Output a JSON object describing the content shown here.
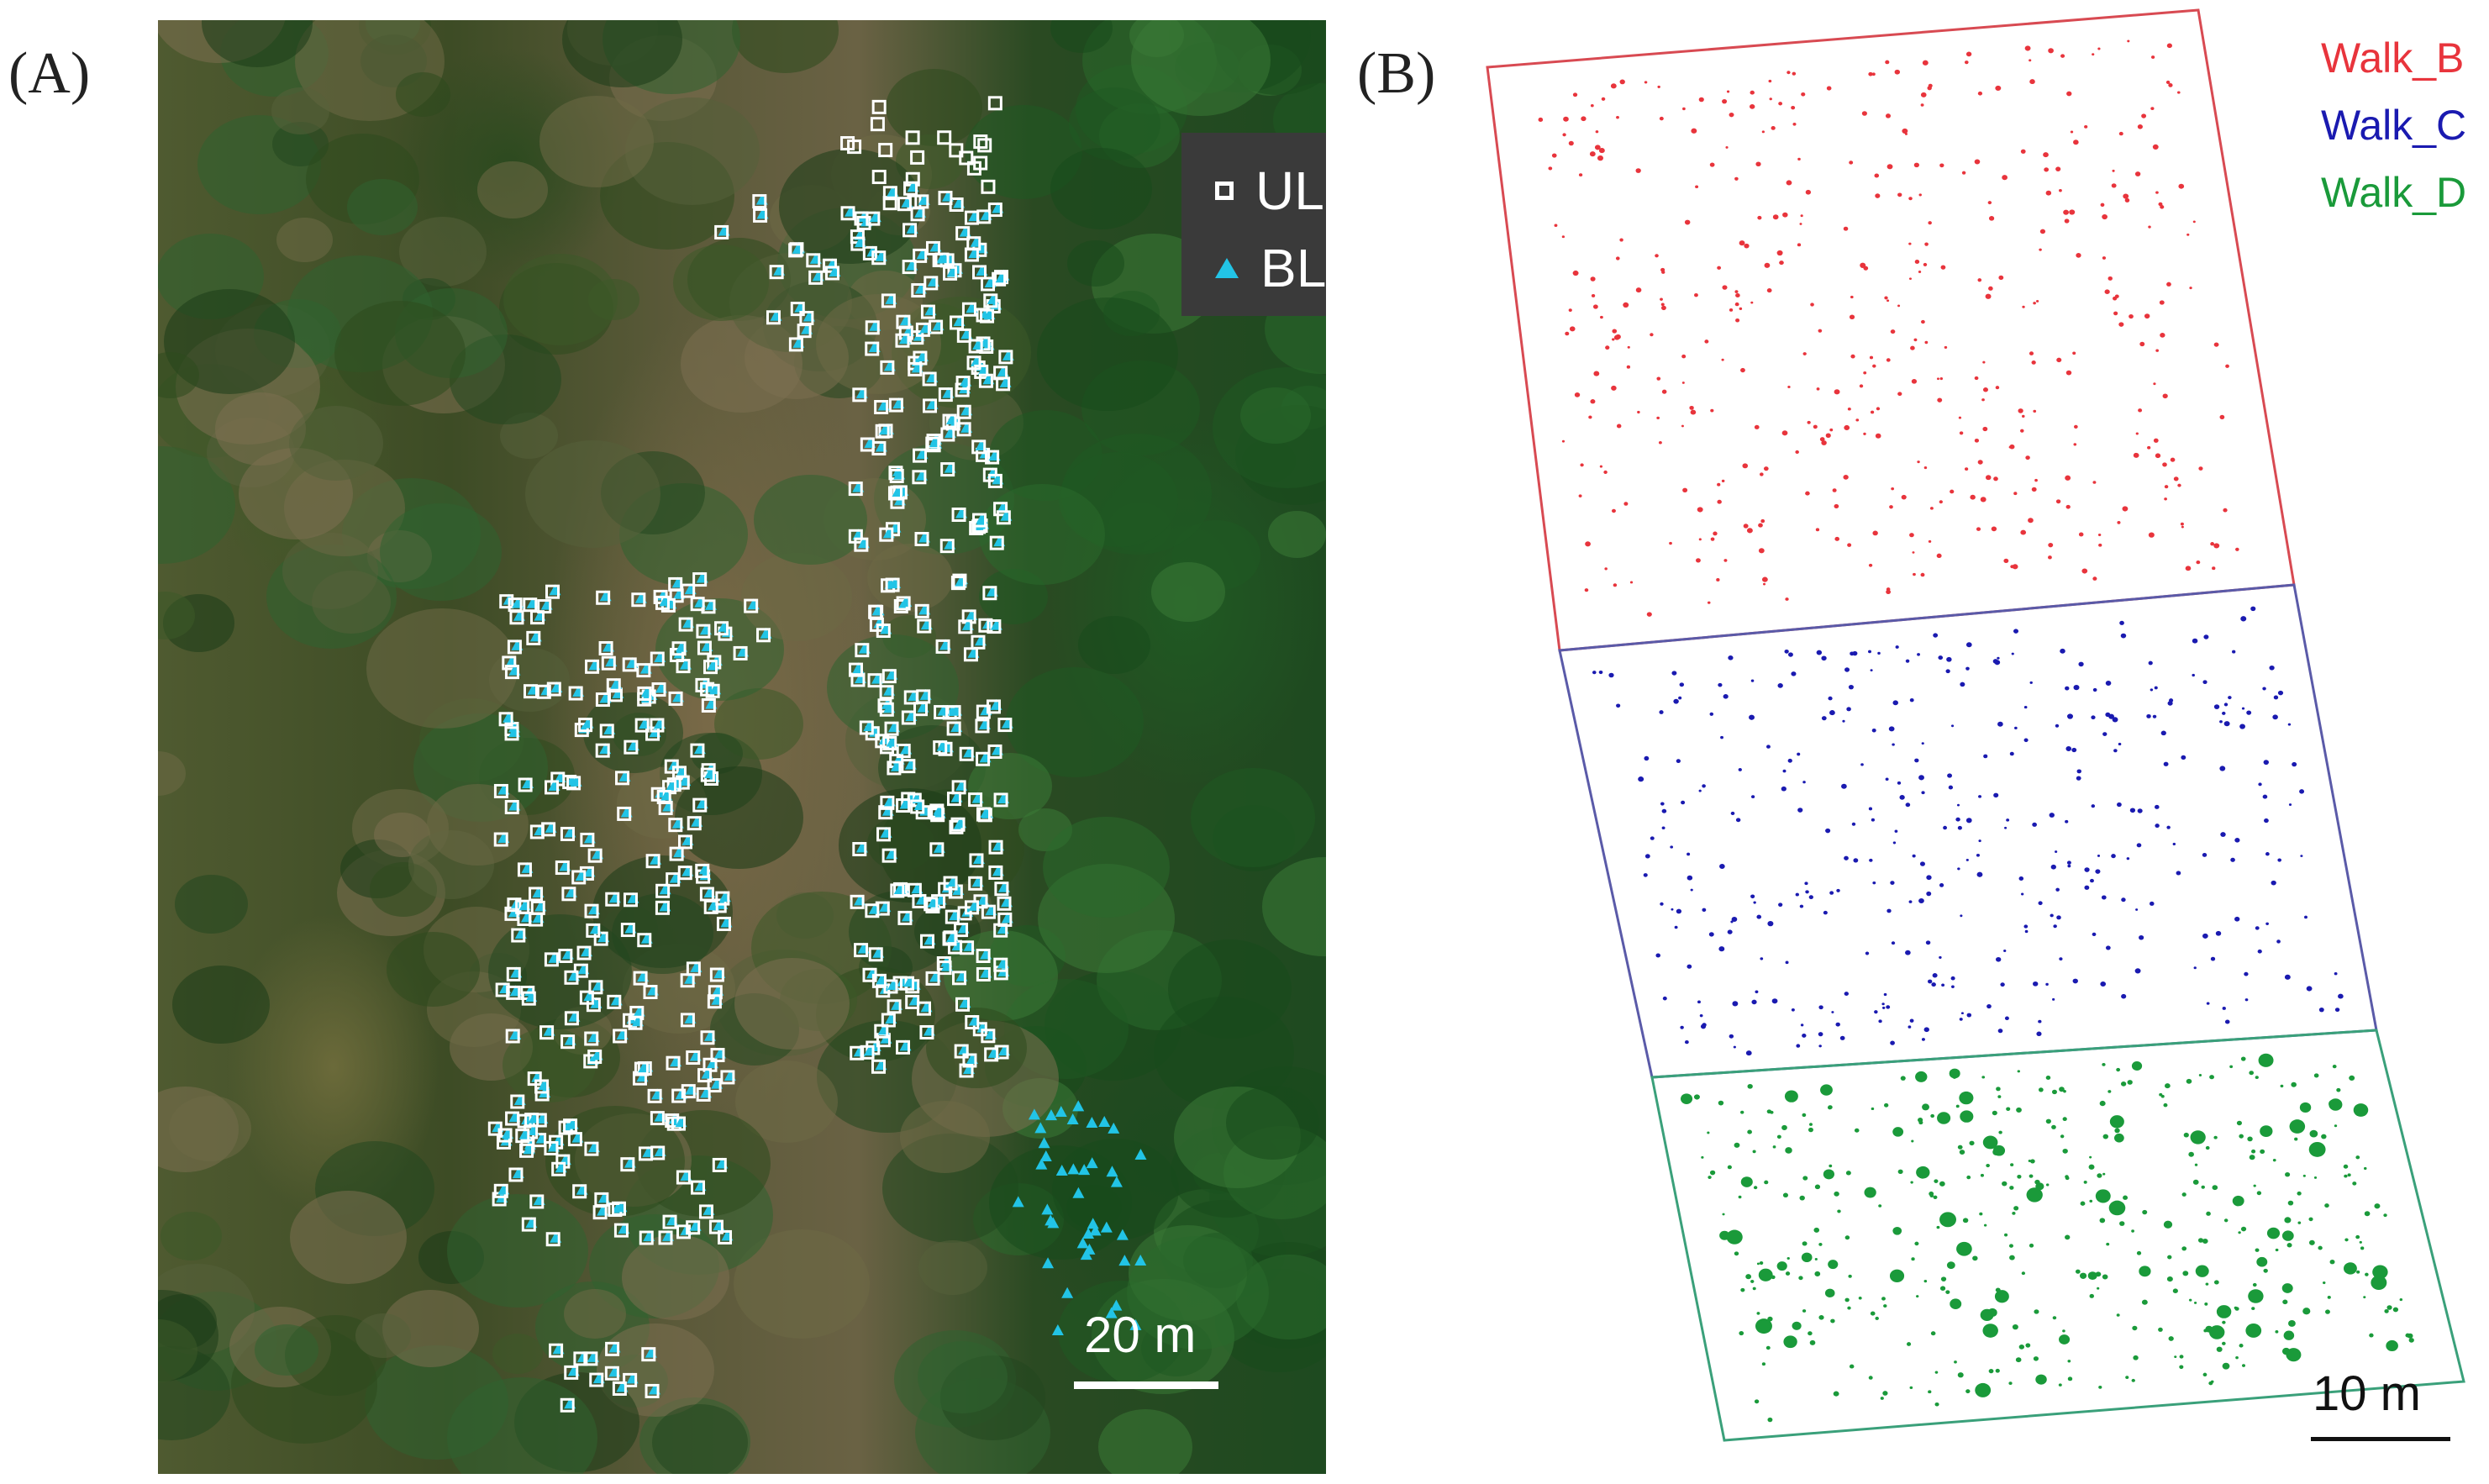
{
  "panels": {
    "a": {
      "label": "(A)"
    },
    "b": {
      "label": "(B)"
    }
  },
  "legend_a": {
    "items": [
      {
        "label": "ULS",
        "marker": "hollow-square",
        "color": "#ffffff"
      },
      {
        "label": "BLS",
        "marker": "filled-triangle",
        "color": "#22c4e6"
      }
    ]
  },
  "scale_a": {
    "label": "20 m"
  },
  "legend_b": {
    "items": [
      {
        "label": "Walk_B",
        "color": "#e8343c"
      },
      {
        "label": "Walk_C",
        "color": "#1a1ab0"
      },
      {
        "label": "Walk_D",
        "color": "#1a9a3a"
      }
    ]
  },
  "scale_b": {
    "label": "10 m"
  },
  "colors": {
    "uls_marker": "#ffffff",
    "bls_marker": "#22c4e6",
    "walk_b": "#e8343c",
    "walk_c": "#1a1ab0",
    "walk_d": "#1a9a3a"
  }
}
